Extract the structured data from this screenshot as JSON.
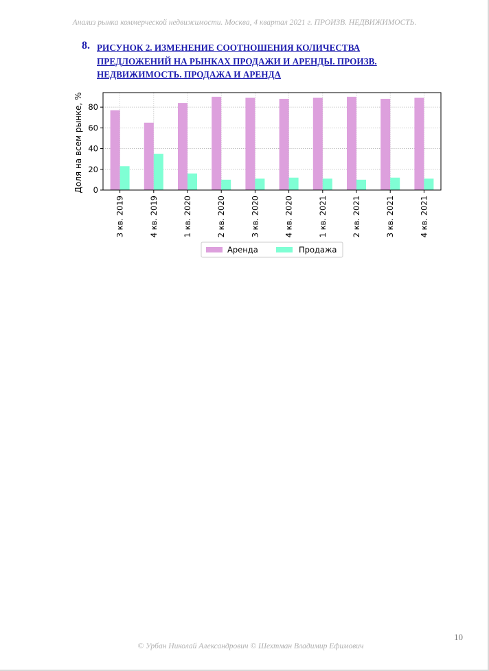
{
  "header": {
    "text": "Анализ рынка коммерческой недвижимости.  Москва,  4 квартал 2021 г.   ПРОИЗВ. НЕДВИЖИМОСТЬ."
  },
  "figure": {
    "number": "8.",
    "title_lines": [
      "РИСУНОК 2. ИЗМЕНЕНИЕ СООТНОШЕНИЯ КОЛИЧЕСТВА",
      "ПРЕДЛОЖЕНИЙ НА РЫНКАХ ПРОДАЖИ И АРЕНДЫ. ПРОИЗВ.",
      "НЕДВИЖИМОСТЬ. ПРОДАЖА И АРЕНДА"
    ]
  },
  "chart_data": {
    "type": "bar",
    "categories": [
      "3 кв. 2019",
      "4 кв. 2019",
      "1 кв. 2020",
      "2 кв. 2020",
      "3 кв. 2020",
      "4 кв. 2020",
      "1 кв. 2021",
      "2 кв. 2021",
      "3 кв. 2021",
      "4 кв. 2021"
    ],
    "series": [
      {
        "name": "Аренда",
        "color": "#dda0dd",
        "values": [
          77,
          65,
          84,
          90,
          89,
          88,
          89,
          90,
          88,
          89
        ]
      },
      {
        "name": "Продажа",
        "color": "#7fffd4",
        "values": [
          23,
          35,
          16,
          10,
          11,
          12,
          11,
          10,
          12,
          11
        ]
      }
    ],
    "ylabel": "Доля на всем рынке, %",
    "ylim": [
      0,
      94
    ],
    "yticks": [
      0,
      20,
      40,
      60,
      80
    ],
    "grid": true,
    "legend_position": "bottom-center"
  },
  "footer": {
    "text": "© Урбан Николай Александрович   © Шехтман Владимир Ефимович"
  },
  "page_number": "10"
}
